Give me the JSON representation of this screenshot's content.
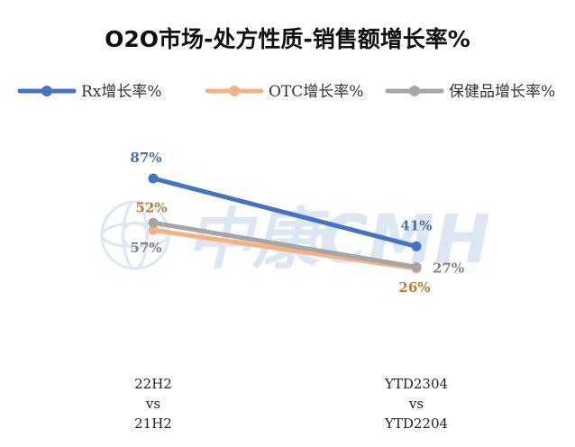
{
  "chart_data": {
    "type": "line",
    "title": "O2O市场-处方性质-销售额增长率%",
    "categories": [
      [
        "22H2",
        "vs",
        "21H2"
      ],
      [
        "YTD2304",
        "vs",
        "YTD2204"
      ]
    ],
    "series": [
      {
        "name": "Rx增长率%",
        "values": [
          87,
          41
        ],
        "labels": [
          "87%",
          "41%"
        ],
        "color": "#4472c4"
      },
      {
        "name": "OTC增长率%",
        "values": [
          52,
          26
        ],
        "labels": [
          "52%",
          "26%"
        ],
        "color": "#f4b183"
      },
      {
        "name": "保健品增长率%",
        "values": [
          57,
          27
        ],
        "labels": [
          "57%",
          "27%"
        ],
        "color": "#a5a5a5"
      }
    ],
    "label_colors": [
      "#4a6fb0",
      "#c07a35",
      "#7f7f7f"
    ],
    "legend_position": "top",
    "grid": false
  },
  "watermark": {
    "text": "中康CMH",
    "color": "#dde6f3"
  }
}
